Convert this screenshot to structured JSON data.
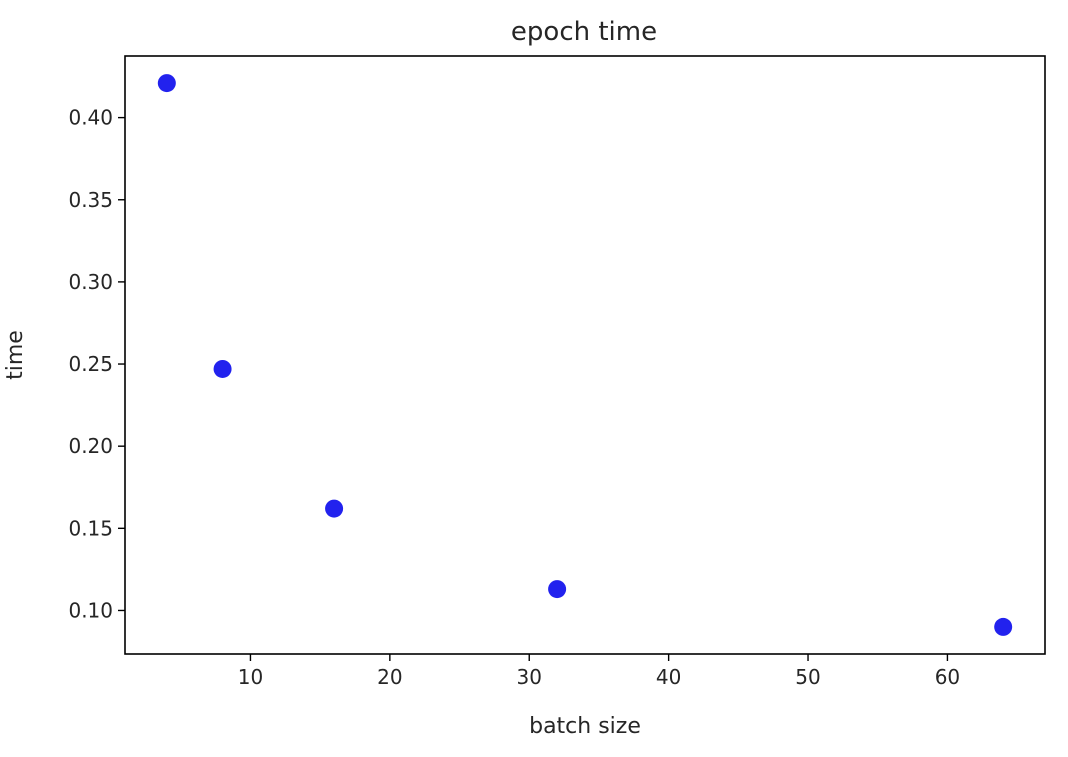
{
  "chart_data": {
    "type": "scatter",
    "title": "epoch time",
    "xlabel": "batch size",
    "ylabel": "time",
    "xlim": [
      1,
      67
    ],
    "ylim": [
      0.0735,
      0.4375
    ],
    "x_ticks": [
      10,
      20,
      30,
      40,
      50,
      60
    ],
    "x_tick_labels": [
      "10",
      "20",
      "30",
      "40",
      "50",
      "60"
    ],
    "y_ticks": [
      0.1,
      0.15,
      0.2,
      0.25,
      0.3,
      0.35,
      0.4
    ],
    "y_tick_labels": [
      "0.10",
      "0.15",
      "0.20",
      "0.25",
      "0.30",
      "0.35",
      "0.40"
    ],
    "grid": false,
    "marker_color": "#2222ee",
    "series": [
      {
        "x": [
          4,
          8,
          16,
          32,
          64
        ],
        "y": [
          0.421,
          0.247,
          0.162,
          0.113,
          0.09
        ]
      }
    ]
  }
}
